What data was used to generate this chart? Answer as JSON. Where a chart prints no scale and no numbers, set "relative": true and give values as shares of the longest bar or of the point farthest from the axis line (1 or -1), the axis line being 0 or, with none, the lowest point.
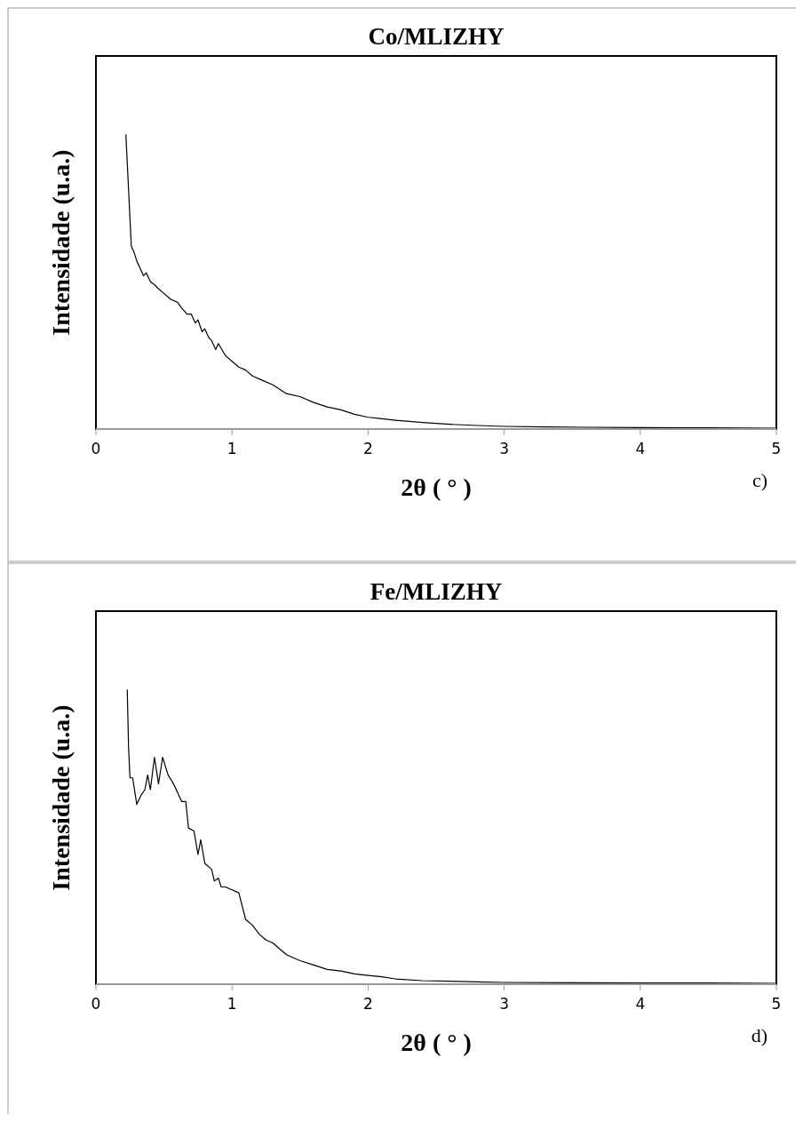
{
  "chart_data": [
    {
      "type": "line",
      "title": "Co/MLIZHY",
      "xlabel": "2θ ( ° )",
      "ylabel": "Intensidade (u.a.)",
      "relative": true,
      "xlim": [
        0,
        5
      ],
      "xticks": [
        0,
        1,
        2,
        3,
        4,
        5
      ],
      "annotations": [
        "c)"
      ],
      "series": [
        {
          "color": "#000000",
          "x": [
            0.22,
            0.26,
            0.28,
            0.3,
            0.33,
            0.35,
            0.37,
            0.4,
            0.43,
            0.45,
            0.5,
            0.55,
            0.6,
            0.63,
            0.67,
            0.7,
            0.73,
            0.75,
            0.78,
            0.8,
            0.83,
            0.85,
            0.88,
            0.9,
            0.95,
            1.0,
            1.05,
            1.1,
            1.15,
            1.2,
            1.3,
            1.4,
            1.5,
            1.6,
            1.7,
            1.8,
            1.9,
            2.0,
            2.1,
            2.2,
            2.4,
            2.6,
            2.8,
            3.0,
            3.3,
            3.6,
            4.0,
            4.5,
            5.0
          ],
          "values": [
            1,
            0.62,
            0.6,
            0.57,
            0.54,
            0.52,
            0.53,
            0.5,
            0.49,
            0.48,
            0.46,
            0.44,
            0.43,
            0.41,
            0.39,
            0.39,
            0.36,
            0.37,
            0.33,
            0.34,
            0.31,
            0.3,
            0.27,
            0.29,
            0.25,
            0.23,
            0.21,
            0.2,
            0.18,
            0.17,
            0.15,
            0.12,
            0.11,
            0.09,
            0.075,
            0.065,
            0.05,
            0.04,
            0.035,
            0.03,
            0.022,
            0.016,
            0.012,
            0.009,
            0.007,
            0.006,
            0.005,
            0.004,
            0.003
          ]
        }
      ]
    },
    {
      "type": "line",
      "title": "Fe/MLIZHY",
      "xlabel": "2θ ( ° )",
      "ylabel": "Intensidade (u.a.)",
      "relative": true,
      "xlim": [
        0,
        5
      ],
      "xticks": [
        0,
        1,
        2,
        3,
        4,
        5
      ],
      "annotations": [
        "d)"
      ],
      "series": [
        {
          "color": "#000000",
          "x": [
            0.23,
            0.24,
            0.25,
            0.27,
            0.3,
            0.33,
            0.36,
            0.38,
            0.4,
            0.43,
            0.46,
            0.49,
            0.53,
            0.57,
            0.6,
            0.63,
            0.66,
            0.68,
            0.72,
            0.75,
            0.77,
            0.8,
            0.85,
            0.87,
            0.9,
            0.92,
            0.95,
            1.0,
            1.05,
            1.1,
            1.15,
            1.2,
            1.25,
            1.3,
            1.35,
            1.4,
            1.5,
            1.6,
            1.7,
            1.8,
            1.9,
            2.0,
            2.1,
            2.2,
            2.4,
            2.6,
            2.8,
            3.0,
            3.5,
            4.0,
            4.5,
            5.0
          ],
          "values": [
            1,
            0.8,
            0.7,
            0.7,
            0.61,
            0.64,
            0.66,
            0.71,
            0.66,
            0.77,
            0.68,
            0.77,
            0.71,
            0.68,
            0.65,
            0.62,
            0.62,
            0.53,
            0.52,
            0.44,
            0.49,
            0.41,
            0.39,
            0.35,
            0.36,
            0.33,
            0.33,
            0.32,
            0.31,
            0.22,
            0.2,
            0.17,
            0.15,
            0.14,
            0.12,
            0.1,
            0.08,
            0.065,
            0.05,
            0.045,
            0.035,
            0.03,
            0.025,
            0.018,
            0.012,
            0.01,
            0.008,
            0.006,
            0.005,
            0.004,
            0.004,
            0.003
          ]
        }
      ]
    }
  ]
}
